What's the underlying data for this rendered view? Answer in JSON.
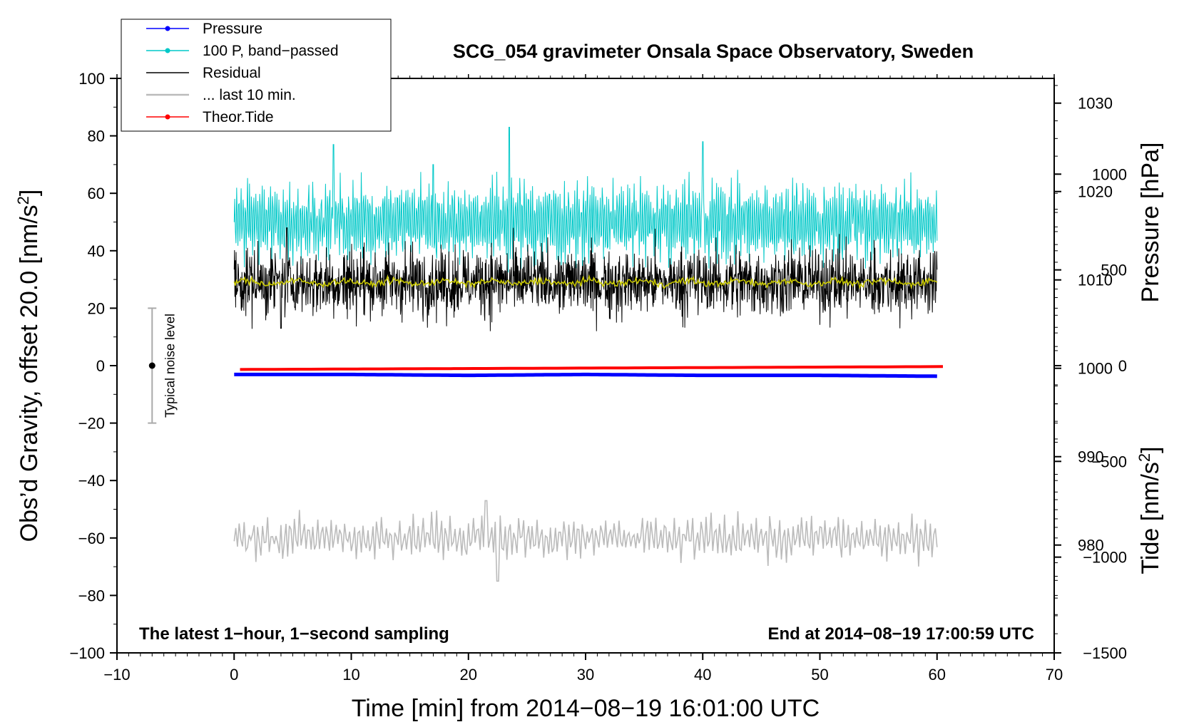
{
  "chart_data": {
    "type": "line",
    "title": "SCG_054 gravimeter Onsala Space Observatory, Sweden",
    "xlabel": "Time [min] from 2014−08−19 16:01:00 UTC",
    "ylabel_left_main": "Obs’d Gravity, offset 20.0 [nm/s",
    "ylabel_left_sup": "2",
    "ylabel_left_close": "]",
    "ylabel_right_pressure": "Pressure [hPa]",
    "ylabel_right_tide_main": "Tide [nm/s",
    "ylabel_right_tide_sup": "2",
    "ylabel_right_tide_close": "]",
    "xlim": [
      -10,
      70
    ],
    "ylim": [
      -100,
      100
    ],
    "pressure_lim": [
      967.8,
      1032.8
    ],
    "tide_lim": [
      -1500,
      1500
    ],
    "x_ticks": [
      "−10",
      "0",
      "10",
      "20",
      "30",
      "40",
      "50",
      "60",
      "70"
    ],
    "x_tick_values": [
      -10,
      0,
      10,
      20,
      30,
      40,
      50,
      60,
      70
    ],
    "y_ticks": [
      "−100",
      "−80",
      "−60",
      "−40",
      "−20",
      "0",
      "20",
      "40",
      "60",
      "80",
      "100"
    ],
    "y_tick_values": [
      -100,
      -80,
      -60,
      -40,
      -20,
      0,
      20,
      40,
      60,
      80,
      100
    ],
    "pressure_ticks": [
      "980",
      "990",
      "1000",
      "1010",
      "1020",
      "1030"
    ],
    "pressure_tick_values": [
      980,
      990,
      1000,
      1010,
      1020,
      1030
    ],
    "tide_ticks": [
      "−1500",
      "−1000",
      "−500",
      "0",
      "500",
      "1000"
    ],
    "tide_tick_values": [
      -1500,
      -1000,
      -500,
      0,
      500,
      1000
    ],
    "legend": [
      {
        "label": "Pressure",
        "color": "#0000ff",
        "marker": true
      },
      {
        "label": "100 P, band−passed",
        "color": "#00c8c8",
        "marker": true
      },
      {
        "label": "Residual",
        "color": "#000000",
        "marker": false
      },
      {
        "label": "... last 10 min.",
        "color": "#bbbbbb",
        "marker": false
      },
      {
        "label": "Theor.Tide",
        "color": "#ff0000",
        "marker": true
      }
    ],
    "legend_position": "top-left",
    "annotation_left": "The latest 1−hour, 1−second sampling",
    "annotation_right": "End at 2014−08−19 17:00:59 UTC",
    "noise_label": "Typical noise level",
    "noise_bar": {
      "x": -7,
      "center": 0,
      "low": -20,
      "high": 20
    },
    "series": [
      {
        "name": "Pressure",
        "color": "#0000ff",
        "axis": "pressure",
        "x_range": [
          0,
          60
        ],
        "values_hPa": [
          999.3,
          999.3,
          999.2,
          999.3,
          999.2,
          999.2,
          999.1
        ]
      },
      {
        "name": "100 P, band-passed",
        "color": "#00c8c8",
        "axis": "gravity",
        "x_range": [
          0,
          60
        ],
        "mean": 50,
        "amplitude": 12,
        "peaks": [
          [
            8.5,
            77
          ],
          [
            23.5,
            83
          ],
          [
            40,
            78
          ],
          [
            17,
            70
          ]
        ]
      },
      {
        "name": "Residual",
        "color": "#000000",
        "axis": "gravity",
        "x_range": [
          0,
          60
        ],
        "mean": 29,
        "amplitude": 8,
        "extremes": [
          [
            4,
            13
          ],
          [
            4.5,
            48
          ]
        ]
      },
      {
        "name": "Residual smoothed",
        "color": "#cccc00",
        "axis": "gravity",
        "x_range": [
          0,
          60
        ],
        "mean": 29,
        "amplitude": 1
      },
      {
        "name": "... last 10 min.",
        "color": "#bbbbbb",
        "axis": "gravity",
        "x_range": [
          0,
          60
        ],
        "mean": -60,
        "amplitude": 7,
        "extremes": [
          [
            21.5,
            -47
          ],
          [
            22.5,
            -75
          ]
        ]
      },
      {
        "name": "Theor.Tide",
        "color": "#ff0000",
        "axis": "tide",
        "x_range": [
          0.5,
          60.5
        ],
        "start_value": -20,
        "end_value": -5
      }
    ]
  },
  "colors": {
    "pressure": "#0000ff",
    "bandpassed": "#00c8c8",
    "residual": "#000000",
    "smoothed": "#cccc00",
    "last10": "#bbbbbb",
    "tide": "#ff0000"
  }
}
